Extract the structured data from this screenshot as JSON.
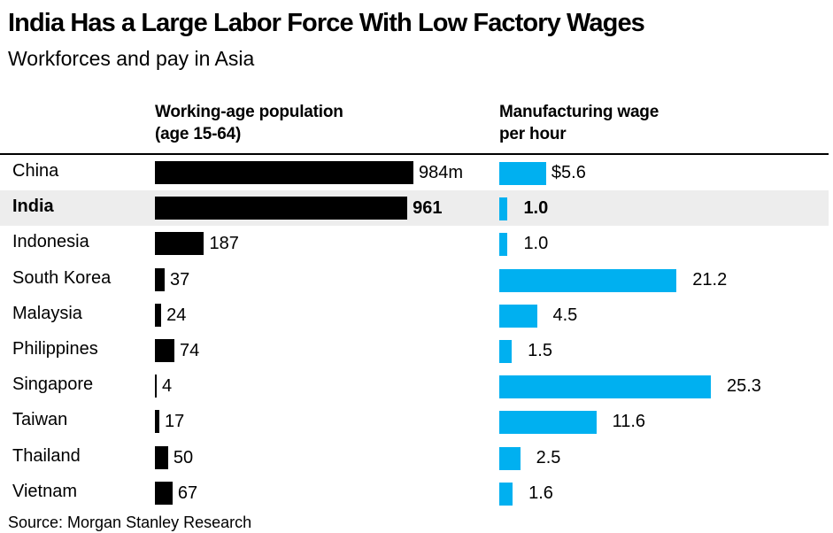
{
  "title": "India Has a Large Labor Force With Low Factory Wages",
  "subtitle": "Workforces and pay in Asia",
  "source": "Source: Morgan Stanley Research",
  "colors": {
    "population_bar": "#000000",
    "wage_bar": "#00b0f0",
    "highlight_row": "#ededed"
  },
  "chart_data": {
    "type": "bar",
    "orientation": "horizontal",
    "title": "India Has a Large Labor Force With Low Factory Wages",
    "subtitle": "Workforces and pay in Asia",
    "categories": [
      "China",
      "India",
      "Indonesia",
      "South Korea",
      "Malaysia",
      "Philippines",
      "Singapore",
      "Taiwan",
      "Thailand",
      "Vietnam"
    ],
    "highlight": "India",
    "series": [
      {
        "name": "Working-age population\n(age 15-64)",
        "unit": "millions",
        "values": [
          984,
          961,
          187,
          37,
          24,
          74,
          4,
          17,
          50,
          67
        ],
        "labels": [
          "984m",
          "961",
          "187",
          "37",
          "24",
          "74",
          "4",
          "17",
          "50",
          "67"
        ],
        "xlim": [
          0,
          984
        ]
      },
      {
        "name": "Manufacturing wage\nper hour",
        "unit": "USD",
        "values": [
          5.6,
          1.0,
          1.0,
          21.2,
          4.5,
          1.5,
          25.3,
          11.6,
          2.5,
          1.6
        ],
        "labels": [
          "$5.6",
          "1.0",
          "1.0",
          "21.2",
          "4.5",
          "1.5",
          "25.3",
          "11.6",
          "2.5",
          "1.6"
        ],
        "xlim": [
          0,
          25.3
        ]
      }
    ]
  }
}
